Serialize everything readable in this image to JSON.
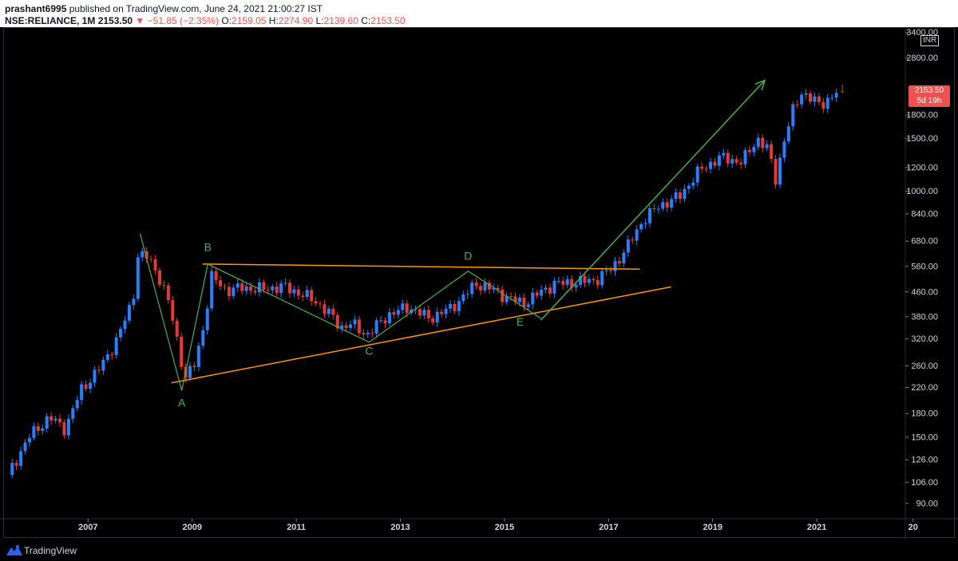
{
  "header": {
    "publisher": "prashant6995",
    "published_text": "published on TradingView.com, June 24, 2021 21:00:27 IST",
    "symbol": "NSE:RELIANCE, 1M",
    "last": "2153.50",
    "change": "▼ −51.85 (−2.35%)",
    "o_label": "O:",
    "o_value": "2159.05",
    "h_label": "H:",
    "h_value": "2274.90",
    "l_label": "L:",
    "l_value": "2139.60",
    "c_label": "C:",
    "c_value": "2153.50"
  },
  "footer": {
    "brand": "TradingView"
  },
  "price_tag": {
    "price": "2153.50",
    "countdown": "5d 19h"
  },
  "currency": "INR",
  "colors": {
    "up": "#2a7fff",
    "down": "#e53935",
    "trend": "#ff9800",
    "pattern": "#4caf50",
    "axis_text": "#d1d4dc",
    "background": "#000000"
  },
  "chart_data": {
    "type": "candlestick",
    "title": "",
    "interval": "1M",
    "y_scale": "log",
    "ylim": [
      80,
      3500
    ],
    "y_ticks": [
      3400,
      2800,
      1800,
      1500,
      1200,
      1000,
      840,
      680,
      560,
      460,
      380,
      320,
      260,
      220,
      180,
      150,
      126,
      106,
      90
    ],
    "x_range": [
      2005.4,
      2022.7
    ],
    "x_ticks": [
      {
        "label": "2007",
        "year": 2007
      },
      {
        "label": "2009",
        "year": 2009
      },
      {
        "label": "2011",
        "year": 2011
      },
      {
        "label": "2013",
        "year": 2013
      },
      {
        "label": "2015",
        "year": 2015
      },
      {
        "label": "2017",
        "year": 2017
      },
      {
        "label": "2019",
        "year": 2019
      },
      {
        "label": "2021",
        "year": 2021
      },
      {
        "label": "20",
        "year": 2022.85
      }
    ],
    "price_path": [
      [
        2005.5,
        112
      ],
      [
        2005.9,
        150
      ],
      [
        2006.3,
        175
      ],
      [
        2006.6,
        160
      ],
      [
        2006.9,
        215
      ],
      [
        2007.3,
        260
      ],
      [
        2007.6,
        320
      ],
      [
        2007.9,
        430
      ],
      [
        2008.0,
        610
      ],
      [
        2008.2,
        600
      ],
      [
        2008.4,
        520
      ],
      [
        2008.6,
        420
      ],
      [
        2008.8,
        290
      ],
      [
        2008.9,
        235
      ],
      [
        2009.1,
        265
      ],
      [
        2009.3,
        380
      ],
      [
        2009.4,
        520
      ],
      [
        2009.7,
        465
      ],
      [
        2010.0,
        475
      ],
      [
        2010.4,
        470
      ],
      [
        2010.8,
        480
      ],
      [
        2011.1,
        455
      ],
      [
        2011.4,
        430
      ],
      [
        2011.7,
        385
      ],
      [
        2011.9,
        350
      ],
      [
        2012.1,
        360
      ],
      [
        2012.4,
        330
      ],
      [
        2012.8,
        385
      ],
      [
        2013.2,
        410
      ],
      [
        2013.6,
        375
      ],
      [
        2014.0,
        405
      ],
      [
        2014.2,
        435
      ],
      [
        2014.5,
        490
      ],
      [
        2014.8,
        470
      ],
      [
        2015.1,
        440
      ],
      [
        2015.4,
        420
      ],
      [
        2015.7,
        455
      ],
      [
        2016.0,
        490
      ],
      [
        2016.4,
        495
      ],
      [
        2016.8,
        505
      ],
      [
        2017.1,
        550
      ],
      [
        2017.4,
        650
      ],
      [
        2017.7,
        800
      ],
      [
        2018.0,
        890
      ],
      [
        2018.4,
        960
      ],
      [
        2018.8,
        1180
      ],
      [
        2019.2,
        1300
      ],
      [
        2019.6,
        1250
      ],
      [
        2019.9,
        1500
      ],
      [
        2020.1,
        1380
      ],
      [
        2020.25,
        1100
      ],
      [
        2020.4,
        1450
      ],
      [
        2020.6,
        1900
      ],
      [
        2020.75,
        2150
      ],
      [
        2020.9,
        2050
      ],
      [
        2021.1,
        1950
      ],
      [
        2021.3,
        2050
      ],
      [
        2021.45,
        2153.5
      ]
    ],
    "last_candle": {
      "o": 2159.05,
      "h": 2274.9,
      "l": 2139.6,
      "c": 2153.5
    },
    "trendlines": [
      {
        "name": "upper",
        "color": "orange",
        "from": [
          2009.2,
          570
        ],
        "to": [
          2017.6,
          548
        ]
      },
      {
        "name": "lower",
        "color": "orange",
        "from": [
          2008.6,
          228
        ],
        "to": [
          2018.2,
          478
        ]
      },
      {
        "name": "abcde",
        "color": "green",
        "points": [
          [
            2008.0,
            720
          ],
          [
            2008.8,
            215
          ],
          [
            2009.3,
            570
          ],
          [
            2012.4,
            312
          ],
          [
            2014.3,
            540
          ],
          [
            2015.7,
            375
          ]
        ]
      },
      {
        "name": "breakout",
        "color": "green",
        "arrow": true,
        "from": [
          2015.7,
          370
        ],
        "to": [
          2020.0,
          2350
        ]
      }
    ],
    "annotations": [
      {
        "text": "A",
        "x": 2008.8,
        "y": 190
      },
      {
        "text": "B",
        "x": 2009.3,
        "y": 630
      },
      {
        "text": "C",
        "x": 2012.4,
        "y": 283
      },
      {
        "text": "D",
        "x": 2014.3,
        "y": 590
      },
      {
        "text": "E",
        "x": 2015.3,
        "y": 355
      }
    ]
  }
}
